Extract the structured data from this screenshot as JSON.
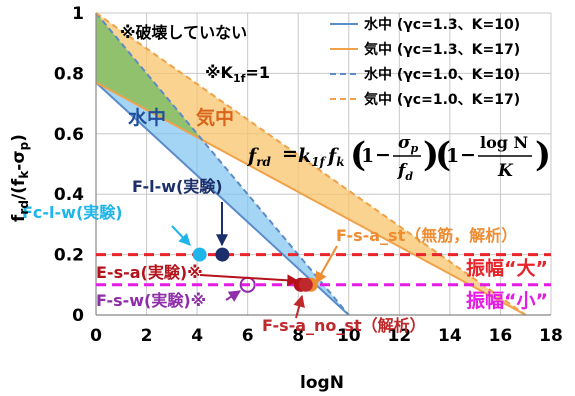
{
  "chart_data": {
    "type": "line",
    "title": "",
    "xlabel": "logN",
    "ylabel": "f_rd/(f_k-σ_p)",
    "xlim": [
      0,
      18
    ],
    "ylim": [
      0,
      1
    ],
    "x_ticks": [
      "0",
      "2",
      "4",
      "6",
      "8",
      "10",
      "12",
      "14",
      "16",
      "18"
    ],
    "y_ticks": [
      "0",
      "0.2",
      "0.4",
      "0.6",
      "0.8",
      "1"
    ],
    "grid": true,
    "legend_position": "top-right",
    "series": [
      {
        "name": "水中 (γc=1.3、K=10)",
        "color": "#5b8bc9",
        "style": "solid",
        "x": [
          0,
          10
        ],
        "y": [
          0.77,
          0
        ]
      },
      {
        "name": "気中 (γc=1.3、K=17)",
        "color": "#f0a24a",
        "style": "solid",
        "x": [
          0,
          17
        ],
        "y": [
          0.77,
          0
        ]
      },
      {
        "name": "水中 (γc=1.0、K=10)",
        "color": "#5b8bc9",
        "style": "dashed",
        "x": [
          0,
          10
        ],
        "y": [
          1.0,
          0
        ]
      },
      {
        "name": "気中 (γc=1.0、K=17)",
        "color": "#f0a24a",
        "style": "dashed",
        "x": [
          0,
          17
        ],
        "y": [
          1.0,
          0
        ]
      }
    ],
    "reference_lines": [
      {
        "label": "振幅“大”",
        "y": 0.2,
        "color": "#e8232a"
      },
      {
        "label": "振幅“小”",
        "y": 0.1,
        "color": "#e619e6"
      }
    ],
    "points": [
      {
        "label": "Fc-l-w(実験)",
        "x": 4.1,
        "y": 0.2,
        "color": "#1fb5e8",
        "open": false
      },
      {
        "label": "F-l-w(実験)",
        "x": 5.0,
        "y": 0.2,
        "color": "#1c2f6b",
        "open": false
      },
      {
        "label": "E-s-a(実験)※",
        "x": 8.1,
        "y": 0.1,
        "color": "#b5121b",
        "open": false
      },
      {
        "label": "F-s-w(実験)※",
        "x": 6.0,
        "y": 0.1,
        "color": "#8e2ea8",
        "open": true
      },
      {
        "label": "F-s-a_st（無筋，解析）",
        "x": 8.5,
        "y": 0.1,
        "color": "#f08c30",
        "open": false
      },
      {
        "label": "F-s-a_no_st（解析）",
        "x": 8.3,
        "y": 0.1,
        "color": "#c0292b",
        "open": false
      }
    ],
    "annotations": {
      "not_broken": "※破壊していない",
      "k1f_note": "※K",
      "k1f_sub": "1f",
      "k1f_value": "=1",
      "water_label": "水中",
      "air_label": "気中",
      "formula_lhs": "f",
      "formula_lhs_sub": "rd",
      "formula_eq": "=",
      "formula_k": "k",
      "formula_k_sub": "1f",
      "formula_f": "f",
      "formula_f_sub": "k",
      "formula_sigma": "σ",
      "formula_sigma_sub": "p",
      "formula_fd": "f",
      "formula_fd_sub": "d",
      "formula_logN": "log N",
      "formula_K": "K",
      "formula_one": "1",
      "formula_minus": "−"
    }
  }
}
